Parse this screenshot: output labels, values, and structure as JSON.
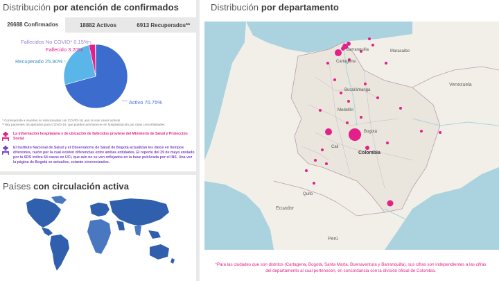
{
  "colors": {
    "accent": "#e3208a",
    "active_slice": "#3d6ccf",
    "recovered_slice": "#5ab6e8",
    "deceased_slice": "#e3208a",
    "deceased_noncovid_slice": "#9b7fd4",
    "info_pink": "#e3208a",
    "info_purple": "#7a46c7",
    "country_highlight": "#2f5fad",
    "bubble": "#e3208a"
  },
  "left_top": {
    "title_light": "Distribución",
    "title_bold": "por atención de confirmados",
    "tabs": [
      {
        "label": "26688 Confirmados",
        "active": true
      },
      {
        "label": "18882 Activos",
        "active": false
      },
      {
        "label": "6913 Recuperados**",
        "active": false
      }
    ],
    "pie": {
      "slices": [
        {
          "label": "Activo 70.75%",
          "value": 70.75,
          "color": "#3d6ccf"
        },
        {
          "label": "Recuperado 25.90%",
          "value": 25.9,
          "color": "#5ab6e8"
        },
        {
          "label": "Fallecido 3.20%",
          "value": 3.2,
          "color": "#e3208a"
        },
        {
          "label": "Fallecidos No COVID* 0.15%",
          "value": 0.15,
          "color": "#9b7fd4"
        }
      ]
    },
    "footnote_1": "* Corresponde a muertes no relacionadas con COVID-19, aún si eran casos activos",
    "footnote_2": "**Hay pacientes recuperados para COVID-19, que pueden permanecer en hospitalización por otras comorbilidades",
    "info_1": "La información hospitalaria y de ubicación de fallecidos proviene del Ministerio de Salud y Protección Social",
    "info_2": "El Instituto Nacional de Salud y el Observatorio de Salud de Bogotá actualizan los datos en tiempos diferentes, razón por la cual existen diferencias entre ambas entidades. El reporte del 29 de mayo enviado por la SDS indica 64 casos en UCI, que aún no se ven reflejados en la base publicada por el INS. Una vez la página de Bogotá se actualice, estarán sincronizados."
  },
  "left_bottom": {
    "title_light": "Países",
    "title_bold": "con circulación activa"
  },
  "right": {
    "title_light": "Distribución",
    "title_bold": "por departamento",
    "map_labels": {
      "colombia": "Colombia",
      "venezuela": "Venezuela",
      "ecuador": "Ecuador",
      "peru": "Perú",
      "barranquilla": "Barranquilla",
      "cartagena": "Cartagena",
      "maracaibo": "Maracaibo",
      "medellin": "Medellín",
      "bogota": "Bogotá",
      "cali": "Cali",
      "quito": "Quito",
      "bucaramanga": "Bucaramanga"
    },
    "footer_note": "*Para las ciudades que son distritos (Cartagena, Bogotá, Santa Marta, Buenaventura y Barranquilla), sus cifras son independientes a las cifras del departamento al cual pertenecen, en concordancia con la división oficial de Colombia."
  }
}
